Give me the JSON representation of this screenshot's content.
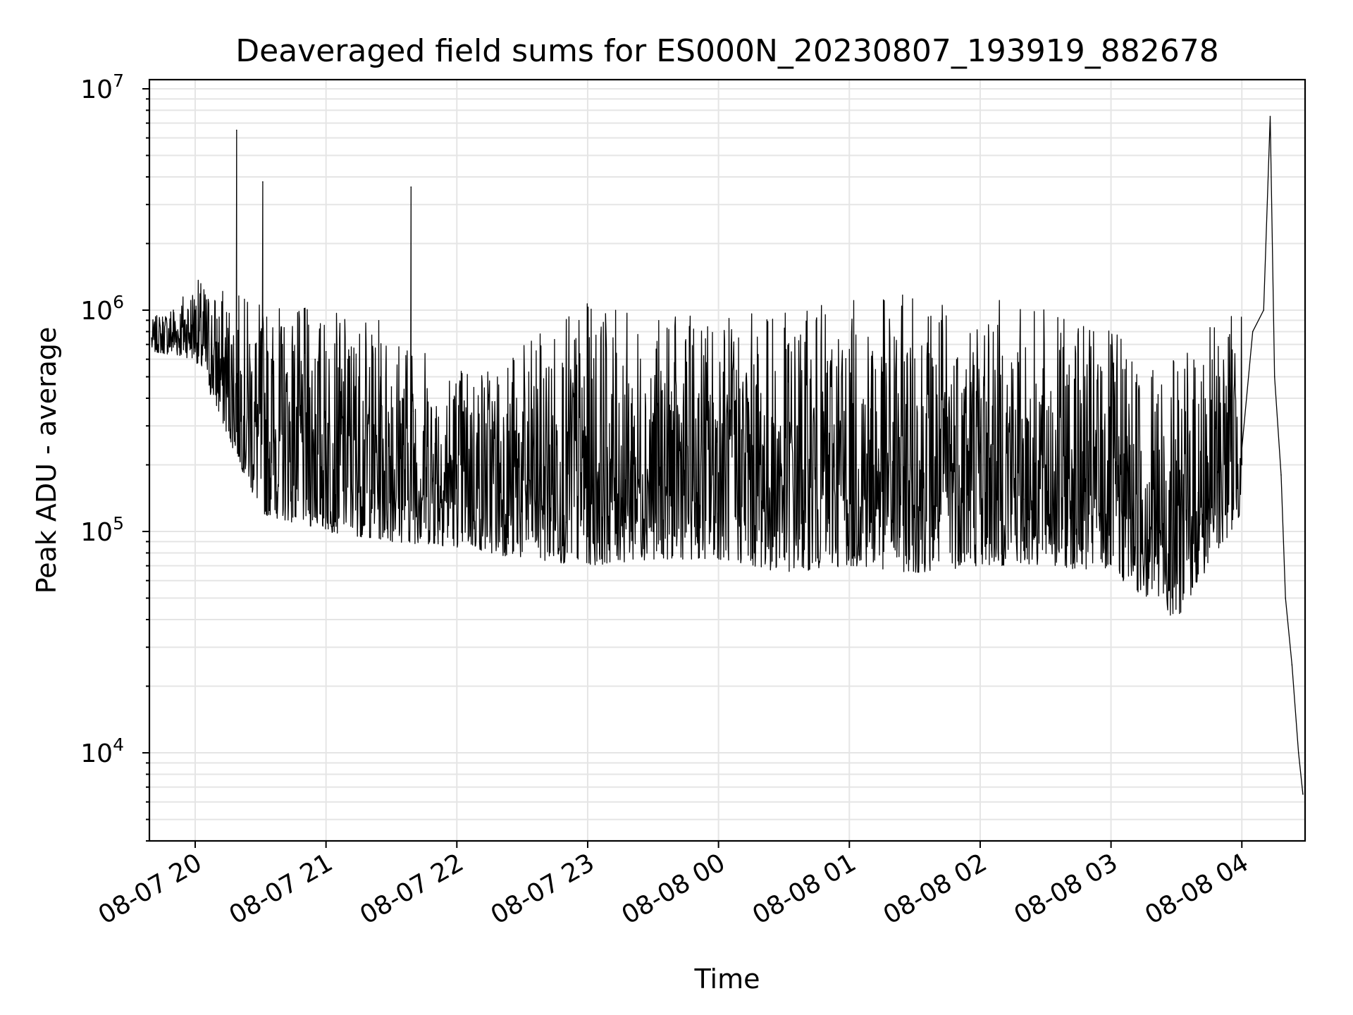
{
  "chart_data": {
    "type": "line",
    "title": "Deaveraged field sums for ES000N_20230807_193919_882678",
    "xlabel": "Time",
    "ylabel": "Peak ADU - average",
    "y_scale": "log",
    "ylim": [
      4000,
      11000000
    ],
    "xlim": [
      "2023-08-07 19:39",
      "2023-08-08 04:29"
    ],
    "grid": true,
    "legend": "none",
    "x_ticks": [
      {
        "value": "2023-08-07 20:00",
        "label": "08-07 20"
      },
      {
        "value": "2023-08-07 21:00",
        "label": "08-07 21"
      },
      {
        "value": "2023-08-07 22:00",
        "label": "08-07 22"
      },
      {
        "value": "2023-08-07 23:00",
        "label": "08-07 23"
      },
      {
        "value": "2023-08-08 00:00",
        "label": "08-08 00"
      },
      {
        "value": "2023-08-08 01:00",
        "label": "08-08 01"
      },
      {
        "value": "2023-08-08 02:00",
        "label": "08-08 02"
      },
      {
        "value": "2023-08-08 03:00",
        "label": "08-08 03"
      },
      {
        "value": "2023-08-08 04:00",
        "label": "08-08 04"
      }
    ],
    "y_ticks": [
      {
        "value": 10000,
        "base": "10",
        "exp": "4"
      },
      {
        "value": 100000,
        "base": "10",
        "exp": "5"
      },
      {
        "value": 1000000,
        "base": "10",
        "exp": "6"
      },
      {
        "value": 10000000,
        "base": "10",
        "exp": "7"
      }
    ],
    "series_color": "#000000",
    "x": [
      "2023-08-07 19:40",
      "2023-08-07 19:45",
      "2023-08-07 19:50",
      "2023-08-07 19:55",
      "2023-08-07 20:00",
      "2023-08-07 20:05",
      "2023-08-07 20:10",
      "2023-08-07 20:15",
      "2023-08-07 20:19",
      "2023-08-07 20:20",
      "2023-08-07 20:25",
      "2023-08-07 20:30",
      "2023-08-07 20:31",
      "2023-08-07 20:35",
      "2023-08-07 20:40",
      "2023-08-07 20:45",
      "2023-08-07 20:50",
      "2023-08-07 20:55",
      "2023-08-07 21:00",
      "2023-08-07 21:05",
      "2023-08-07 21:10",
      "2023-08-07 21:15",
      "2023-08-07 21:20",
      "2023-08-07 21:25",
      "2023-08-07 21:30",
      "2023-08-07 21:35",
      "2023-08-07 21:39",
      "2023-08-07 21:40",
      "2023-08-07 21:45",
      "2023-08-07 21:50",
      "2023-08-07 22:00",
      "2023-08-07 22:10",
      "2023-08-07 22:20",
      "2023-08-07 22:30",
      "2023-08-07 22:40",
      "2023-08-07 22:50",
      "2023-08-07 23:00",
      "2023-08-07 23:10",
      "2023-08-07 23:20",
      "2023-08-07 23:30",
      "2023-08-07 23:40",
      "2023-08-07 23:50",
      "2023-08-08 00:00",
      "2023-08-08 00:10",
      "2023-08-08 00:20",
      "2023-08-08 00:30",
      "2023-08-08 00:40",
      "2023-08-08 00:50",
      "2023-08-08 01:00",
      "2023-08-08 01:10",
      "2023-08-08 01:20",
      "2023-08-08 01:30",
      "2023-08-08 01:40",
      "2023-08-08 01:50",
      "2023-08-08 02:00",
      "2023-08-08 02:10",
      "2023-08-08 02:20",
      "2023-08-08 02:30",
      "2023-08-08 02:40",
      "2023-08-08 02:50",
      "2023-08-08 03:00",
      "2023-08-08 03:10",
      "2023-08-08 03:20",
      "2023-08-08 03:30",
      "2023-08-08 03:40",
      "2023-08-08 03:50",
      "2023-08-08 04:00",
      "2023-08-08 04:05",
      "2023-08-08 04:10",
      "2023-08-08 04:13",
      "2023-08-08 04:15",
      "2023-08-08 04:18",
      "2023-08-08 04:20",
      "2023-08-08 04:23",
      "2023-08-08 04:26",
      "2023-08-08 04:28"
    ],
    "values": [
      750000,
      850000,
      1000000,
      900000,
      1000000,
      800000,
      600000,
      700000,
      6500000,
      500000,
      700000,
      800000,
      3800000,
      600000,
      700000,
      650000,
      700000,
      600000,
      650000,
      700000,
      600000,
      500000,
      550000,
      500000,
      450000,
      400000,
      3600000,
      350000,
      300000,
      250000,
      200000,
      180000,
      150000,
      130000,
      120000,
      110000,
      110000,
      100000,
      100000,
      100000,
      95000,
      95000,
      100000,
      95000,
      90000,
      95000,
      110000,
      100000,
      100000,
      110000,
      110000,
      120000,
      130000,
      130000,
      120000,
      130000,
      140000,
      130000,
      130000,
      120000,
      110000,
      100000,
      110000,
      150000,
      150000,
      150000,
      200000,
      800000,
      1000000,
      7500000,
      500000,
      180000,
      50000,
      25000,
      10000,
      6500
    ],
    "envelope": {
      "x": [
        "2023-08-07 19:40",
        "2023-08-07 20:00",
        "2023-08-07 20:30",
        "2023-08-07 21:00",
        "2023-08-07 21:30",
        "2023-08-07 22:00",
        "2023-08-07 22:30",
        "2023-08-07 23:00",
        "2023-08-07 23:30",
        "2023-08-08 00:00",
        "2023-08-08 00:30",
        "2023-08-08 01:00",
        "2023-08-08 01:30",
        "2023-08-08 02:00",
        "2023-08-08 02:30",
        "2023-08-08 03:00",
        "2023-08-08 03:30",
        "2023-08-08 04:00"
      ],
      "high": [
        900000,
        1400000,
        1100000,
        1000000,
        900000,
        600000,
        700000,
        1100000,
        900000,
        1000000,
        1000000,
        1100000,
        1200000,
        1200000,
        1000000,
        800000,
        600000,
        1200000
      ],
      "low": [
        650000,
        600000,
        120000,
        100000,
        90000,
        85000,
        75000,
        70000,
        75000,
        75000,
        65000,
        70000,
        65000,
        70000,
        70000,
        65000,
        40000,
        120000
      ]
    }
  }
}
